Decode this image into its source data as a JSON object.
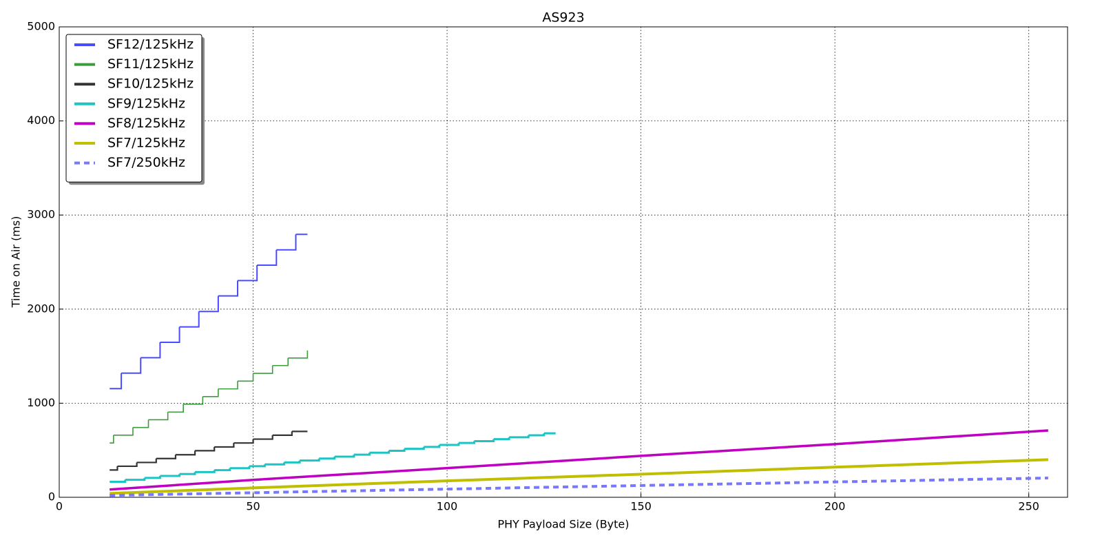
{
  "chart_data": {
    "type": "line",
    "title": "AS923",
    "x_label": "PHY Payload Size (Byte)",
    "y_label": "Time on Air (ms)",
    "xlim": [
      0,
      260
    ],
    "ylim": [
      0,
      5000
    ],
    "xticks": [
      0,
      50,
      100,
      150,
      200,
      250
    ],
    "yticks": [
      0,
      1000,
      2000,
      3000,
      4000,
      5000
    ],
    "grid": true,
    "legend": "upper left",
    "series": [
      {
        "name": "SF12/125kHz",
        "color": "#4a4aff",
        "step": true,
        "x": [
          13,
          16,
          21,
          26,
          31,
          36,
          41,
          46,
          51,
          56,
          61,
          64
        ],
        "values": [
          1155,
          1320,
          1483,
          1647,
          1811,
          1975,
          2140,
          2303,
          2467,
          2630,
          2795,
          2795
        ]
      },
      {
        "name": "SF11/125kHz",
        "color": "#3c9c3c",
        "step": true,
        "x": [
          13,
          14,
          19,
          23,
          28,
          32,
          37,
          41,
          46,
          50,
          55,
          59,
          64
        ],
        "values": [
          577,
          660,
          742,
          824,
          906,
          990,
          1070,
          1152,
          1235,
          1317,
          1400,
          1480,
          1560
        ]
      },
      {
        "name": "SF10/125kHz",
        "color": "#333333",
        "step": true,
        "x": [
          13,
          15,
          20,
          25,
          30,
          35,
          40,
          45,
          50,
          55,
          60,
          64
        ],
        "values": [
          290,
          330,
          370,
          412,
          452,
          495,
          535,
          577,
          618,
          660,
          700,
          700
        ]
      },
      {
        "name": "SF9/125kHz",
        "color": "#1cc4c4",
        "step": true,
        "x": [
          13,
          17,
          22,
          26,
          31,
          35,
          40,
          44,
          49,
          53,
          58,
          62,
          67,
          71,
          76,
          80,
          85,
          89,
          94,
          98,
          103,
          107,
          112,
          116,
          121,
          125,
          128
        ],
        "values": [
          165,
          186,
          206,
          227,
          247,
          268,
          288,
          309,
          330,
          350,
          371,
          391,
          412,
          432,
          453,
          474,
          494,
          515,
          535,
          556,
          577,
          597,
          618,
          638,
          659,
          680,
          680
        ]
      },
      {
        "name": "SF8/125kHz",
        "color": "#c000c0",
        "step": false,
        "x": [
          13,
          50,
          100,
          150,
          200,
          255
        ],
        "values": [
          82,
          185,
          310,
          440,
          565,
          710
        ]
      },
      {
        "name": "SF7/125kHz",
        "color": "#bfbf00",
        "step": false,
        "x": [
          13,
          50,
          100,
          150,
          200,
          255
        ],
        "values": [
          41,
          100,
          175,
          245,
          320,
          400
        ]
      },
      {
        "name": "SF7/250kHz",
        "color": "#7777ff",
        "step": false,
        "dashed": true,
        "x": [
          13,
          100,
          255
        ],
        "values": [
          20,
          87,
          205
        ]
      }
    ]
  }
}
